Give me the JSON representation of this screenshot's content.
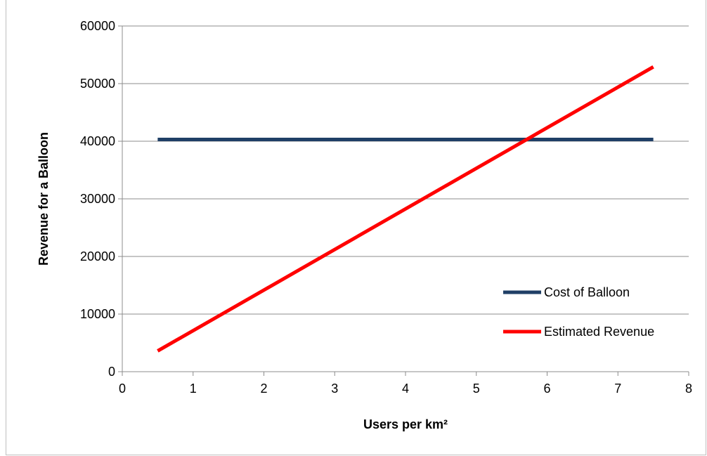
{
  "chart_data": {
    "type": "line",
    "title": "",
    "xlabel": "Users per km²",
    "ylabel": "Revenue for a Balloon",
    "xlim": [
      0,
      8
    ],
    "ylim": [
      0,
      60000
    ],
    "x_ticks": [
      "0",
      "1",
      "2",
      "3",
      "4",
      "5",
      "6",
      "7",
      "8"
    ],
    "y_ticks": [
      "0",
      "10000",
      "20000",
      "30000",
      "40000",
      "50000",
      "60000"
    ],
    "grid": "horizontal",
    "legend_position": "bottom-right",
    "series": [
      {
        "name": "Cost of Balloon",
        "color": "#1f3f66",
        "x": [
          0.5,
          7.5
        ],
        "y": [
          40300,
          40300
        ]
      },
      {
        "name": "Estimated Revenue",
        "color": "#ff0000",
        "x": [
          0.5,
          7.5
        ],
        "y": [
          3600,
          52900
        ]
      }
    ]
  }
}
